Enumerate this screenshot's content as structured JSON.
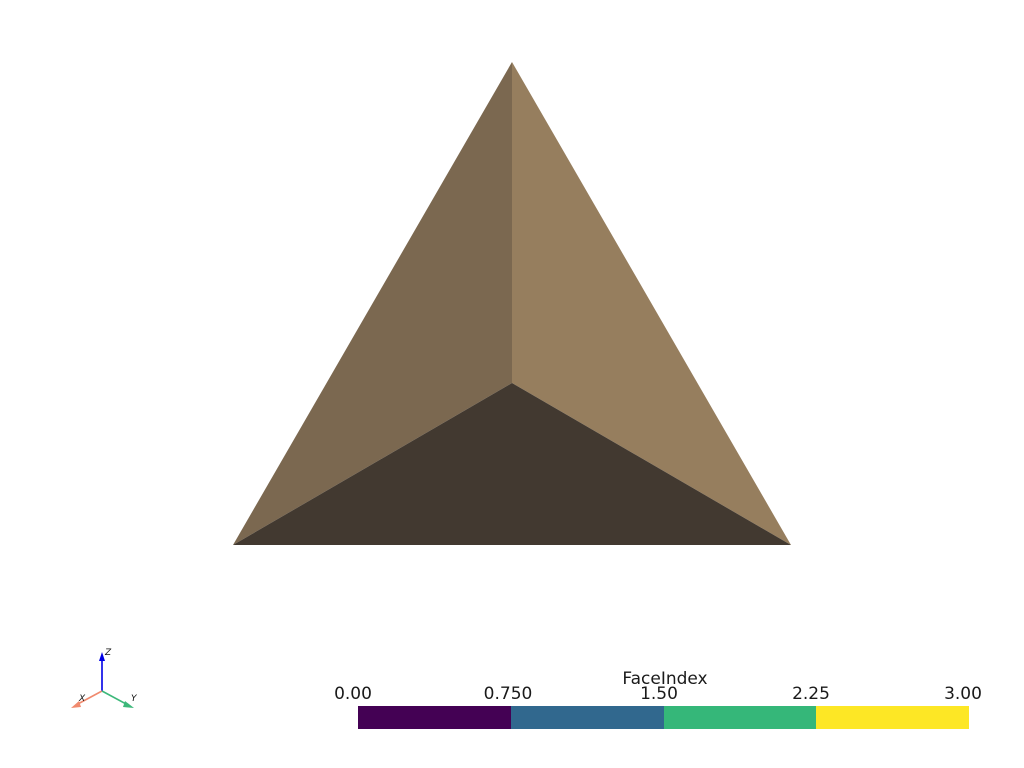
{
  "scene": {
    "face_colors": {
      "left": "#7b6850",
      "right": "#967e5e",
      "bottom": "#423930"
    }
  },
  "scalar_bar": {
    "title": "FaceIndex",
    "ticks": [
      "0.00",
      "0.750",
      "1.50",
      "2.25",
      "3.00"
    ],
    "range": [
      0.0,
      3.0
    ],
    "colors": [
      "#440154",
      "#31688e",
      "#35b779",
      "#fde725"
    ]
  },
  "axes": {
    "x_label": "X",
    "y_label": "Y",
    "z_label": "Z",
    "x_color": "#f08a6e",
    "y_color": "#3db87a",
    "z_color": "#0000e6"
  }
}
